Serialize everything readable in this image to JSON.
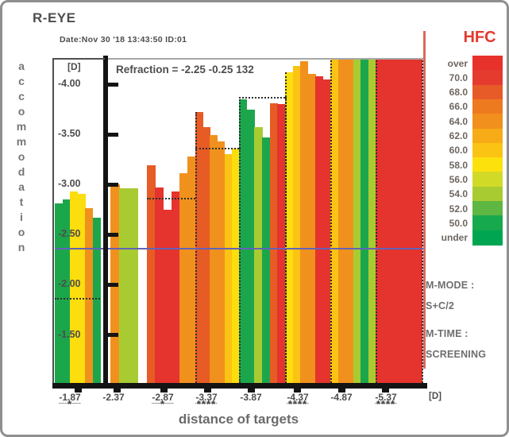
{
  "header": {
    "title": "R-EYE",
    "date_line": "Date:Nov 30 '18 13:43:50  ID:01"
  },
  "side_panel": {
    "m_mode_label": "M-MODE :",
    "m_mode_value": "S+C/2",
    "m_time_label": "M-TIME :",
    "m_time_value": "SCREENING"
  },
  "colors": {
    "palette": {
      "green": "#1ca64c",
      "ygreen": "#a9cb32",
      "yellow": "#fcdd0d",
      "yorange": "#fbc314",
      "orange": "#f0911d",
      "orangered": "#e75b24",
      "red": "#e5332e"
    },
    "reference_line": "#6363b8",
    "dotted_line": "#2e2e2e",
    "legend_title": "#e23a2e",
    "text_dark": "#4d4d4d",
    "text_gray": "#6e6e6e"
  },
  "chart_data": {
    "type": "bar",
    "title": "R-EYE",
    "subtitle": "Date:Nov 30 '18 13:43:50  ID:01",
    "annotation": "Refraction = -2.25 -0.25 132",
    "xlabel": "distance of targets",
    "ylabel": "accommodation",
    "x_unit_label": "[D]",
    "y_unit_label": "[D]",
    "grid": false,
    "y_axis_ticks": [
      {
        "value": -4.0,
        "label": "-4.00"
      },
      {
        "value": -3.5,
        "label": "-3.50"
      },
      {
        "value": -3.0,
        "label": "-3.00"
      },
      {
        "value": -2.5,
        "label": "-2.50"
      },
      {
        "value": -2.0,
        "label": "-2.00"
      },
      {
        "value": -1.5,
        "label": "-1.50"
      }
    ],
    "y_visible_range": [
      -4.28,
      -1.02
    ],
    "reference_line_value": -2.37,
    "groups": [
      {
        "label": "-1.87",
        "target": -1.87,
        "asterisks": "*",
        "bars": [
          {
            "color": "green",
            "value": -2.81
          },
          {
            "color": "green",
            "value": -2.85
          },
          {
            "color": "yellow",
            "value": -2.93
          },
          {
            "color": "yellow",
            "value": -2.91
          },
          {
            "color": "orange",
            "value": -2.76
          },
          {
            "color": "green",
            "value": -2.67
          }
        ]
      },
      {
        "label": "-2.37",
        "target": -2.37,
        "asterisks": "",
        "bars": [
          {
            "color": "orange",
            "value": -3.0
          },
          {
            "color": "ygreen",
            "value": -2.96
          },
          {
            "color": "ygreen",
            "value": -2.96
          }
        ]
      },
      {
        "label": "-2.87",
        "target": -2.87,
        "asterisks": "*",
        "bars": [
          {
            "color": "orangered",
            "value": -3.19
          },
          {
            "color": "red",
            "value": -2.97
          },
          {
            "color": "red",
            "value": -2.75
          },
          {
            "color": "red",
            "value": -2.93
          },
          {
            "color": "orange",
            "value": -3.11
          },
          {
            "color": "orange",
            "value": -3.28
          }
        ]
      },
      {
        "label": "-3.37",
        "target": -3.37,
        "asterisks": "****",
        "bars": [
          {
            "color": "orangered",
            "value": -3.72
          },
          {
            "color": "orangered",
            "value": -3.57
          },
          {
            "color": "orange",
            "value": -3.49
          },
          {
            "color": "orange",
            "value": -3.43
          },
          {
            "color": "yorange",
            "value": -3.3
          },
          {
            "color": "yellow",
            "value": -3.36
          }
        ]
      },
      {
        "label": "-3.87",
        "target": -3.87,
        "asterisks": "",
        "bars": [
          {
            "color": "green",
            "value": -3.85
          },
          {
            "color": "green",
            "value": -3.75
          },
          {
            "color": "ygreen",
            "value": -3.57
          },
          {
            "color": "green",
            "value": -3.47
          },
          {
            "color": "orangered",
            "value": -3.81
          },
          {
            "color": "red",
            "value": -3.8
          }
        ]
      },
      {
        "label": "-4.37",
        "target": -4.37,
        "asterisks": "****",
        "bars": [
          {
            "color": "yellow",
            "value": -4.12
          },
          {
            "color": "yorange",
            "value": -4.18
          },
          {
            "color": "orange",
            "value": -4.23
          },
          {
            "color": "orange",
            "value": -4.1
          },
          {
            "color": "red",
            "value": -4.08
          },
          {
            "color": "red",
            "value": -4.05
          }
        ]
      },
      {
        "label": "-4.87",
        "target": -4.87,
        "asterisks": "",
        "bars": [
          {
            "color": "yorange",
            "value": null
          },
          {
            "color": "orange",
            "value": null
          },
          {
            "color": "orange",
            "value": null
          },
          {
            "color": "ygreen",
            "value": null
          },
          {
            "color": "green",
            "value": null
          },
          {
            "color": "ygreen",
            "value": null
          }
        ]
      },
      {
        "label": "-5.37",
        "target": -5.37,
        "asterisks": "****",
        "bars": [
          {
            "color": "red",
            "value": null
          },
          {
            "color": "red",
            "value": null
          },
          {
            "color": "red",
            "value": null
          },
          {
            "color": "red",
            "value": null
          },
          {
            "color": "red",
            "value": null
          },
          {
            "color": "red",
            "value": null
          }
        ]
      }
    ],
    "legend": {
      "title": "HFC",
      "position": "right",
      "entries": [
        {
          "label": "over",
          "color": "#e6322a"
        },
        {
          "label": "70.0",
          "color": "#e43b2e"
        },
        {
          "label": "68.0",
          "color": "#e75b28"
        },
        {
          "label": "66.0",
          "color": "#ee7a1f"
        },
        {
          "label": "64.0",
          "color": "#f1901c"
        },
        {
          "label": "62.0",
          "color": "#f6ab17"
        },
        {
          "label": "60.0",
          "color": "#fbc313"
        },
        {
          "label": "58.0",
          "color": "#fde10d"
        },
        {
          "label": "56.0",
          "color": "#d2da28"
        },
        {
          "label": "54.0",
          "color": "#a9cb32"
        },
        {
          "label": "52.0",
          "color": "#5eb643"
        },
        {
          "label": "50.0",
          "color": "#17a94e"
        },
        {
          "label": "under",
          "color": "#00a551"
        }
      ]
    }
  }
}
